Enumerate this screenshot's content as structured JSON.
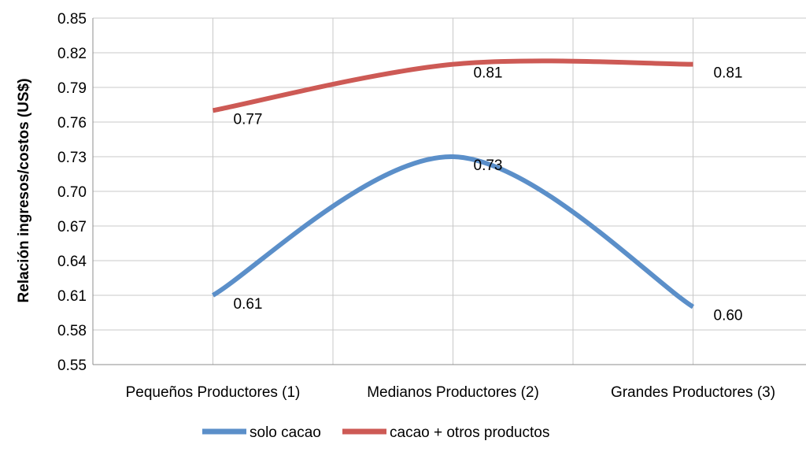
{
  "chart_data": {
    "type": "line",
    "title": "",
    "xlabel": "",
    "ylabel": "Relación ingresos/costos (US$)",
    "ylim": [
      0.55,
      0.85
    ],
    "yticks": [
      0.55,
      0.58,
      0.61,
      0.64,
      0.67,
      0.7,
      0.73,
      0.76,
      0.79,
      0.82,
      0.85
    ],
    "ytick_labels": [
      "0.55",
      "0.58",
      "0.61",
      "0.64",
      "0.67",
      "0.70",
      "0.73",
      "0.76",
      "0.79",
      "0.82",
      "0.85"
    ],
    "categories": [
      "Pequeños Productores (1)",
      "Medianos Productores (2)",
      "Grandes Productores (3)"
    ],
    "grid": true,
    "smooth": true,
    "legend_position": "bottom",
    "series": [
      {
        "name": "solo cacao",
        "color": "#5b8fc9",
        "values": [
          0.61,
          0.73,
          0.6
        ],
        "labels": [
          "0.61",
          "0.73",
          "0.60"
        ]
      },
      {
        "name": "cacao + otros productos",
        "color": "#cd5a55",
        "values": [
          0.77,
          0.81,
          0.81
        ],
        "labels": [
          "0.77",
          "0.81",
          "0.81"
        ]
      }
    ]
  }
}
